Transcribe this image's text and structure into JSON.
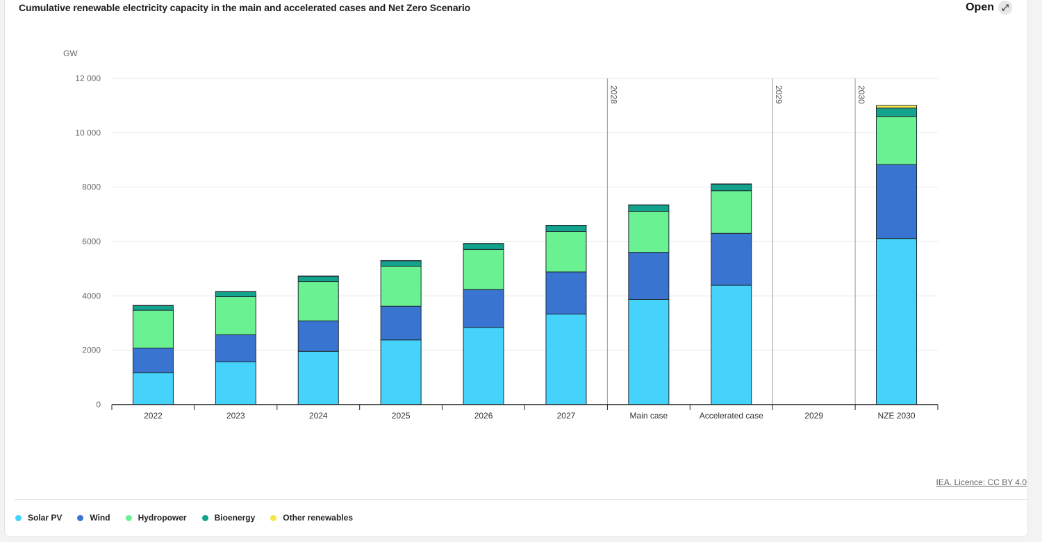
{
  "header": {
    "title": "Cumulative renewable electricity capacity in the main and accelerated cases and Net Zero Scenario",
    "open_label": "Open",
    "open_icon": "external-link-icon"
  },
  "footer": {
    "credit": "IEA. Licence: CC BY 4.0"
  },
  "legend": [
    {
      "name": "Solar PV",
      "color": "#45d3fb"
    },
    {
      "name": "Wind",
      "color": "#3a74d1"
    },
    {
      "name": "Hydropower",
      "color": "#6af292"
    },
    {
      "name": "Bioenergy",
      "color": "#13a38c"
    },
    {
      "name": "Other renewables",
      "color": "#f5e64a"
    }
  ],
  "chart_data": {
    "type": "bar",
    "stacked": true,
    "title": "Cumulative renewable electricity capacity in the main and accelerated cases and Net Zero Scenario",
    "ylabel": "GW",
    "xlabel": "",
    "ylim": [
      0,
      12000
    ],
    "yticks": [
      0,
      2000,
      4000,
      6000,
      8000,
      10000,
      12000
    ],
    "ytick_labels": [
      "0",
      "2000",
      "4000",
      "6000",
      "8000",
      "10 000",
      "12 000"
    ],
    "grid": true,
    "categories": [
      "2022",
      "2023",
      "2024",
      "2025",
      "2026",
      "2027",
      "Main case",
      "Accelerated case",
      "2029",
      "NZE 2030"
    ],
    "annotations": [
      {
        "label": "2028",
        "after_category": "2027"
      },
      {
        "label": "2029",
        "after_category": "Accelerated case"
      },
      {
        "label": "2030",
        "after_category": "2029"
      }
    ],
    "series": [
      {
        "name": "Solar PV",
        "color": "#45d3fb",
        "values": [
          1180,
          1570,
          1960,
          2380,
          2840,
          3330,
          3870,
          4390,
          null,
          6110
        ]
      },
      {
        "name": "Wind",
        "color": "#3a74d1",
        "values": [
          900,
          1000,
          1120,
          1240,
          1390,
          1550,
          1730,
          1910,
          null,
          2720
        ]
      },
      {
        "name": "Hydropower",
        "color": "#6af292",
        "values": [
          1390,
          1400,
          1450,
          1470,
          1480,
          1490,
          1510,
          1570,
          null,
          1770
        ]
      },
      {
        "name": "Bioenergy",
        "color": "#13a38c",
        "values": [
          170,
          180,
          190,
          200,
          210,
          220,
          230,
          240,
          null,
          310
        ]
      },
      {
        "name": "Other renewables",
        "color": "#f5e64a",
        "values": [
          10,
          10,
          10,
          10,
          10,
          10,
          10,
          10,
          null,
          100
        ]
      }
    ]
  }
}
